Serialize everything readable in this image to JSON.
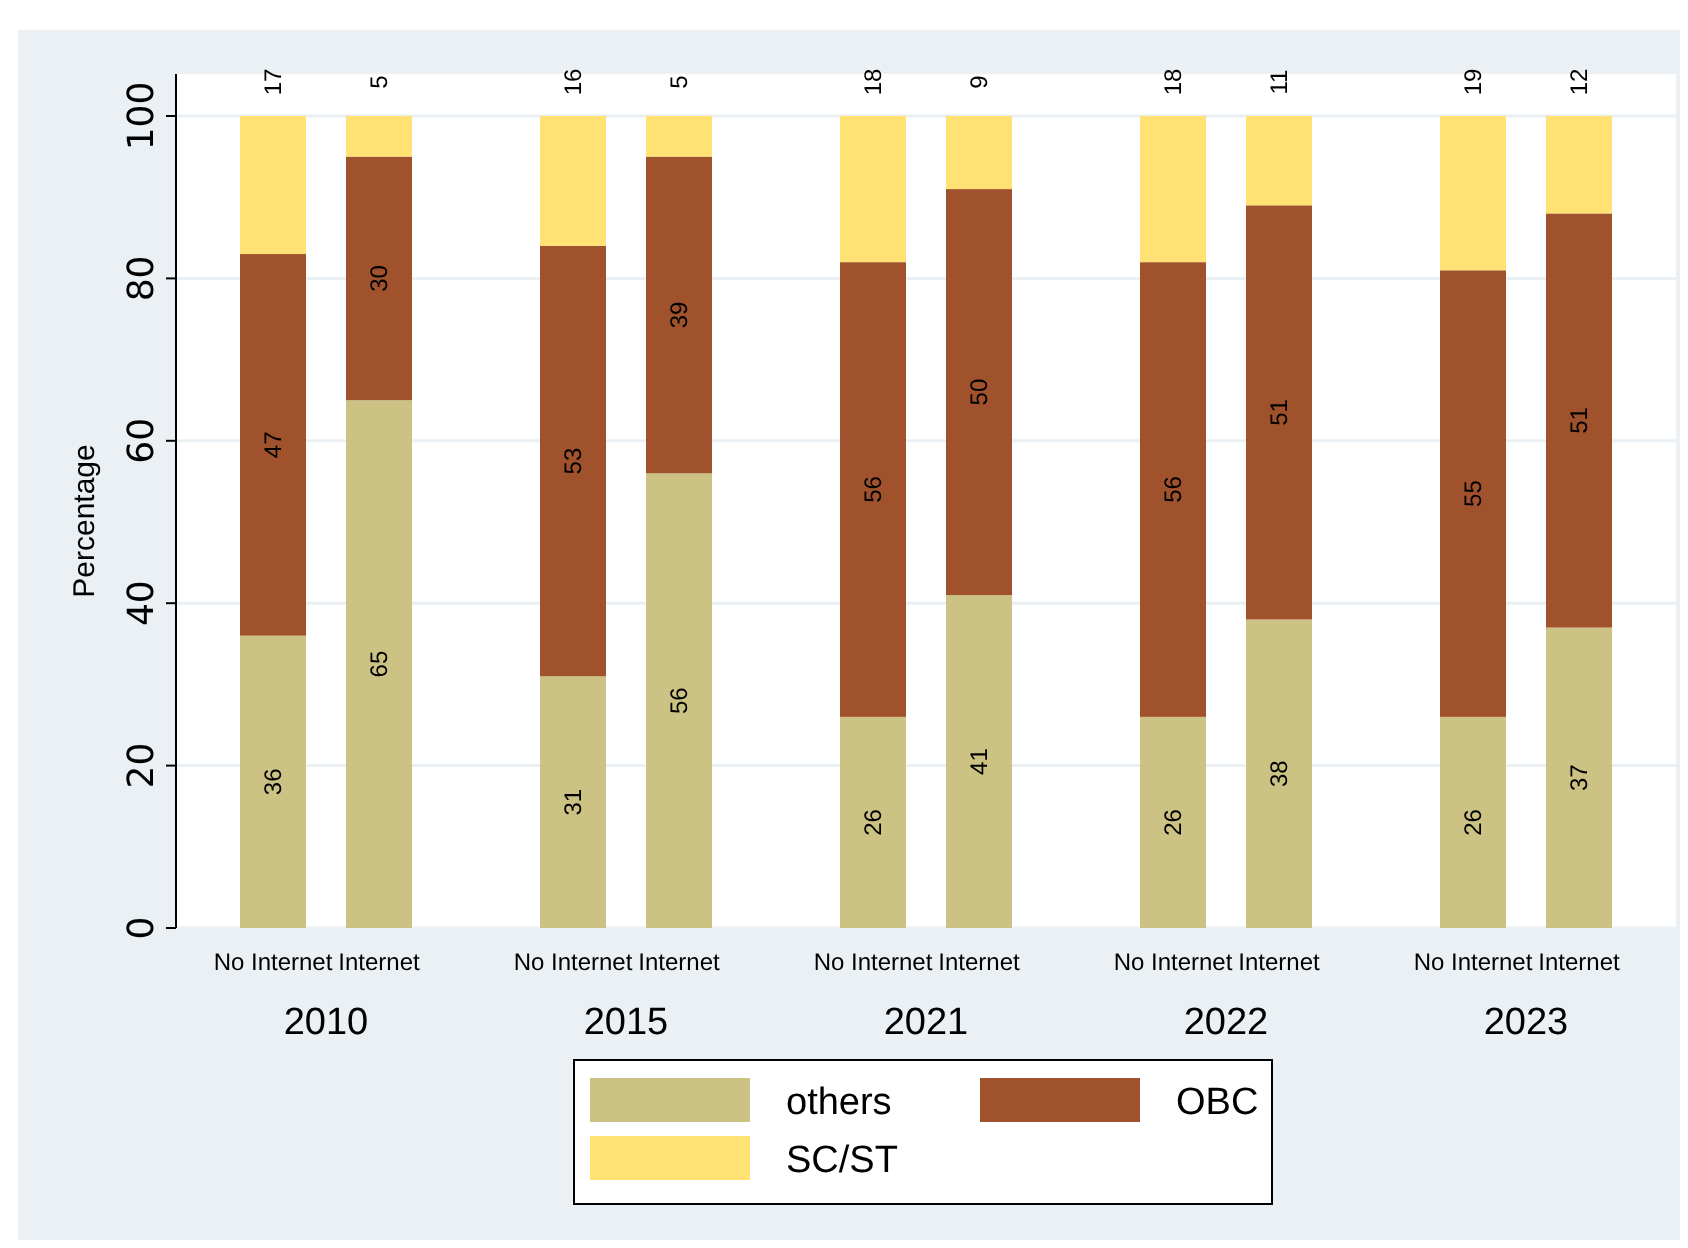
{
  "chart_data": {
    "type": "bar",
    "stacked": true,
    "ylabel": "Percentage",
    "categories": [
      "No Internet",
      "Internet",
      "No Internet",
      "Internet",
      "No Internet",
      "Internet",
      "No Internet",
      "Internet",
      "No Internet",
      "Internet"
    ],
    "annotations": [
      "2010",
      "2015",
      "2021",
      "2022",
      "2023"
    ],
    "series": [
      {
        "name": "others",
        "color": "#cbc283",
        "values": [
          36,
          65,
          31,
          56,
          26,
          41,
          26,
          38,
          26,
          37
        ]
      },
      {
        "name": "OBC",
        "color": "#a0522d",
        "values": [
          47,
          30,
          53,
          39,
          56,
          50,
          56,
          51,
          55,
          51
        ]
      },
      {
        "name": "SC/ST",
        "color": "#ffe174",
        "values": [
          17,
          5,
          16,
          5,
          18,
          9,
          18,
          11,
          19,
          12
        ]
      }
    ],
    "data_labels": true,
    "ylim": [
      0,
      100
    ],
    "yticks": [
      0,
      20,
      40,
      60,
      80,
      100
    ],
    "grid": "y",
    "legend": "bottom"
  }
}
